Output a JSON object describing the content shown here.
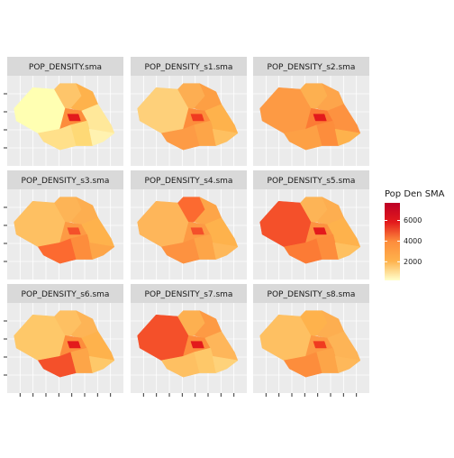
{
  "facets": [
    "POP_DENSITY.sma",
    "POP_DENSITY_s1.sma",
    "POP_DENSITY_s2.sma",
    "POP_DENSITY_s3.sma",
    "POP_DENSITY_s4.sma",
    "POP_DENSITY_s5.sma",
    "POP_DENSITY_s6.sma",
    "POP_DENSITY_s7.sma",
    "POP_DENSITY_s8.sma"
  ],
  "legend": {
    "title": "Pop Den SMA",
    "lim": [
      200,
      7700
    ],
    "ticks": [
      2000,
      4000,
      6000
    ],
    "colors": [
      "#FFFFCC",
      "#FEB24C",
      "#FD8D3C",
      "#E31A1C",
      "#BD0026"
    ]
  }
}
